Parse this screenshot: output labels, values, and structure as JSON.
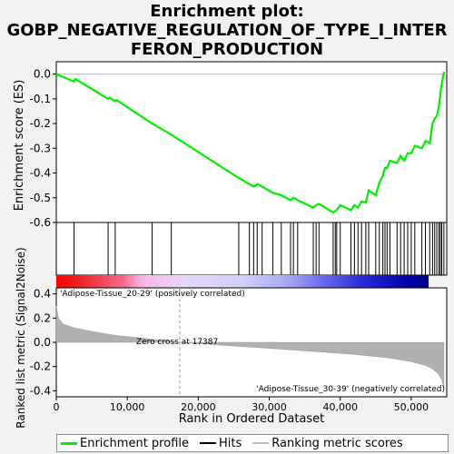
{
  "title_line1": "Enrichment plot:",
  "title_line2": "GOBP_NEGATIVE_REGULATION_OF_TYPE_I_INTER",
  "title_line3": "FERON_PRODUCTION",
  "chart_data": {
    "type": "line",
    "x_max": 55000,
    "es_axis": {
      "ylabel": "Enrichment score (ES)",
      "ylim": [
        -0.6,
        0.05
      ],
      "ticks": [
        "0.0",
        "-0.1",
        "-0.2",
        "-0.3",
        "-0.4",
        "-0.5",
        "-0.6"
      ],
      "tick_values": [
        0.0,
        -0.1,
        -0.2,
        -0.3,
        -0.4,
        -0.5,
        -0.6
      ]
    },
    "enrichment_profile": {
      "x": [
        0,
        2500,
        2700,
        7300,
        7500,
        8300,
        8500,
        13500,
        16200,
        25700,
        27200,
        27800,
        28300,
        29000,
        30500,
        31700,
        33000,
        33400,
        34000,
        36200,
        36600,
        37000,
        39000,
        39500,
        40000,
        41500,
        42000,
        42500,
        43000,
        43600,
        44000,
        45000,
        45500,
        46000,
        46300,
        46600,
        47000,
        48000,
        48500,
        49000,
        49500,
        50000,
        50500,
        51500,
        52000,
        52600,
        53000,
        53300,
        53600,
        53900,
        54100,
        54300,
        54600
      ],
      "y": [
        0.0,
        -0.03,
        -0.02,
        -0.1,
        -0.095,
        -0.11,
        -0.105,
        -0.2,
        -0.245,
        -0.42,
        -0.445,
        -0.455,
        -0.445,
        -0.455,
        -0.48,
        -0.49,
        -0.51,
        -0.5,
        -0.51,
        -0.54,
        -0.53,
        -0.525,
        -0.56,
        -0.55,
        -0.53,
        -0.55,
        -0.53,
        -0.54,
        -0.515,
        -0.52,
        -0.47,
        -0.49,
        -0.44,
        -0.41,
        -0.38,
        -0.38,
        -0.35,
        -0.36,
        -0.33,
        -0.35,
        -0.32,
        -0.32,
        -0.29,
        -0.3,
        -0.27,
        -0.28,
        -0.2,
        -0.18,
        -0.17,
        -0.13,
        -0.08,
        -0.04,
        0.01
      ]
    },
    "hits": [
      2500,
      7300,
      8300,
      13500,
      16200,
      25700,
      27200,
      27800,
      28300,
      29000,
      30500,
      31700,
      33000,
      33400,
      34000,
      36200,
      36600,
      37000,
      39000,
      39300,
      39500,
      40000,
      41500,
      42000,
      42500,
      43000,
      43600,
      44000,
      45000,
      45500,
      46000,
      46300,
      46600,
      47000,
      48000,
      48500,
      49000,
      49500,
      50000,
      50500,
      51500,
      52000,
      52600,
      53000,
      53300,
      53600,
      53900,
      54100,
      54300,
      54600
    ],
    "metric_axis": {
      "ylabel": "Ranked list metric (Signal2Noise)",
      "ylim": [
        -0.45,
        0.45
      ],
      "ticks": [
        "0.4",
        "0.2",
        "0.0",
        "-0.2",
        "-0.4"
      ],
      "tick_values": [
        0.4,
        0.2,
        0.0,
        -0.2,
        -0.4
      ]
    },
    "ranking_metric": {
      "x": [
        0,
        300,
        1000,
        2500,
        5000,
        8000,
        12000,
        17387,
        25000,
        35000,
        42000,
        47000,
        50000,
        52000,
        53000,
        53800,
        54300,
        54600
      ],
      "y": [
        0.3,
        0.2,
        0.15,
        0.12,
        0.09,
        0.06,
        0.035,
        0.0,
        -0.03,
        -0.07,
        -0.1,
        -0.13,
        -0.16,
        -0.19,
        -0.22,
        -0.26,
        -0.31,
        -0.38
      ]
    },
    "zero_cross_label": "Zero cross at 17387",
    "zero_cross": 17387,
    "pos_label": "'Adipose-Tissue_20-29' (positively correlated)",
    "neg_label": "'Adipose-Tissue_30-39' (negatively correlated)",
    "xlabel": "Rank in Ordered Dataset",
    "x_ticks": [
      "0",
      "10,000",
      "20,000",
      "30,000",
      "40,000",
      "50,000"
    ],
    "x_tick_values": [
      0,
      10000,
      20000,
      30000,
      40000,
      50000
    ],
    "legend": [
      "Enrichment profile",
      "Hits",
      "Ranking metric scores"
    ],
    "colors": {
      "profile": "#00ee00",
      "hits": "#000000",
      "metric": "#b0b0b0",
      "pos": "#e00000",
      "neg": "#0000dd"
    }
  }
}
